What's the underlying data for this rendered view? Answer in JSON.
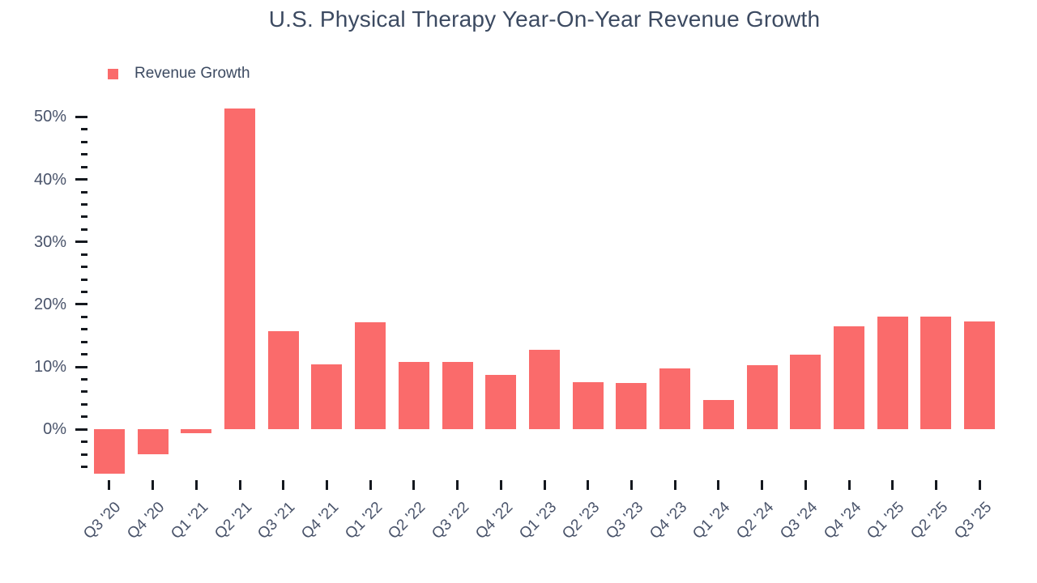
{
  "title": "U.S. Physical Therapy Year-On-Year Revenue Growth",
  "legend": {
    "items": [
      {
        "label": "Revenue Growth",
        "color": "#fa6b6b"
      }
    ]
  },
  "colors": {
    "bar": "#fa6b6b",
    "title_text": "#3c4a61",
    "axis_text": "#49536a",
    "tick": "#15191f",
    "background": "#ffffff"
  },
  "chart_data": {
    "type": "bar",
    "title": "U.S. Physical Therapy Year-On-Year Revenue Growth",
    "categories": [
      "Q3 '20",
      "Q4 '20",
      "Q1 '21",
      "Q2 '21",
      "Q3 '21",
      "Q4 '21",
      "Q1 '22",
      "Q2 '22",
      "Q3 '22",
      "Q4 '22",
      "Q1 '23",
      "Q2 '23",
      "Q3 '23",
      "Q4 '23",
      "Q1 '24",
      "Q2 '24",
      "Q3 '24",
      "Q4 '24",
      "Q1 '25",
      "Q2 '25",
      "Q3 '25"
    ],
    "series": [
      {
        "name": "Revenue Growth",
        "color": "#fa6b6b",
        "values": [
          -7.1,
          -4.0,
          -0.6,
          51.3,
          15.7,
          10.4,
          17.2,
          10.8,
          10.8,
          8.7,
          12.7,
          7.5,
          7.4,
          9.7,
          4.7,
          10.3,
          11.9,
          16.5,
          18.1,
          18.0,
          17.3
        ]
      }
    ],
    "xlabel": "",
    "ylabel": "",
    "ylim": [
      -8,
      52
    ],
    "yticks": [
      {
        "value": 0,
        "label": "0%"
      },
      {
        "value": 10,
        "label": "10%"
      },
      {
        "value": 20,
        "label": "20%"
      },
      {
        "value": 30,
        "label": "30%"
      },
      {
        "value": 40,
        "label": "40%"
      },
      {
        "value": 50,
        "label": "50%"
      }
    ],
    "minor_tick_step": 2,
    "minor_tick_range": [
      -6,
      50
    ],
    "grid": false,
    "legend_position": "top-left"
  }
}
